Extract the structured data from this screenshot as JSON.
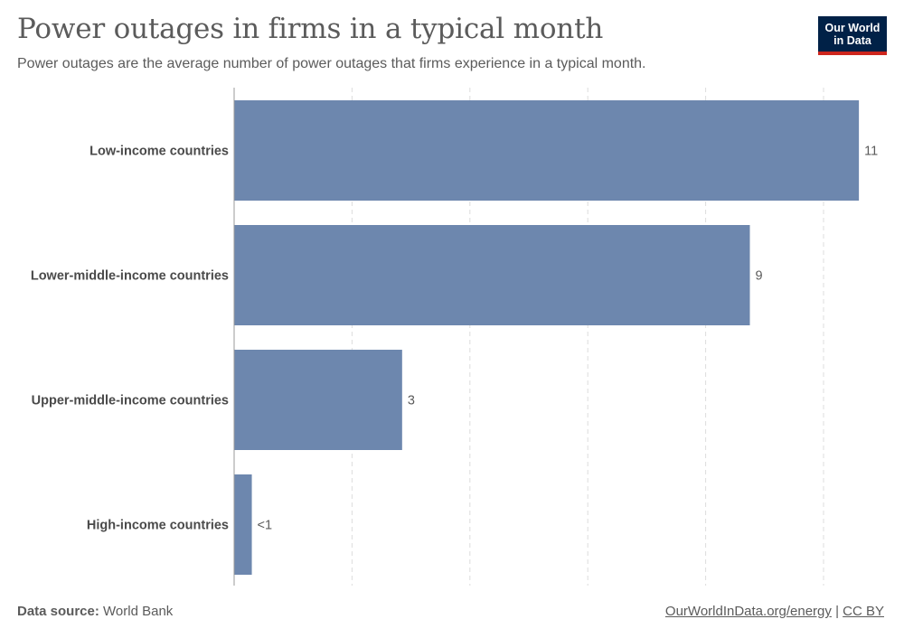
{
  "header": {
    "title": "Power outages in firms in a typical month",
    "subtitle": "Power outages are the average number of power outages that firms experience in a typical month."
  },
  "logo": {
    "line1": "Our World",
    "line2": "in Data"
  },
  "footer": {
    "source_label": "Data source:",
    "source_value": "World Bank",
    "link_text": "OurWorldInData.org/energy",
    "separator": "|",
    "license_text": "CC BY"
  },
  "colors": {
    "bar": "#6d87ae",
    "grid": "#dddddd",
    "axis": "#999999",
    "logo_bg": "#002147",
    "logo_accent": "#ce261e"
  },
  "chart_data": {
    "type": "bar",
    "orientation": "horizontal",
    "title": "Power outages in firms in a typical month",
    "subtitle": "Power outages are the average number of power outages that firms experience in a typical month.",
    "categories": [
      "Low-income countries",
      "Lower-middle-income countries",
      "Upper-middle-income countries",
      "High-income countries"
    ],
    "values": [
      10.6,
      8.75,
      2.85,
      0.3
    ],
    "value_labels": [
      "11",
      "9",
      "3",
      "<1"
    ],
    "xlim": [
      0,
      11
    ],
    "grid": true
  }
}
